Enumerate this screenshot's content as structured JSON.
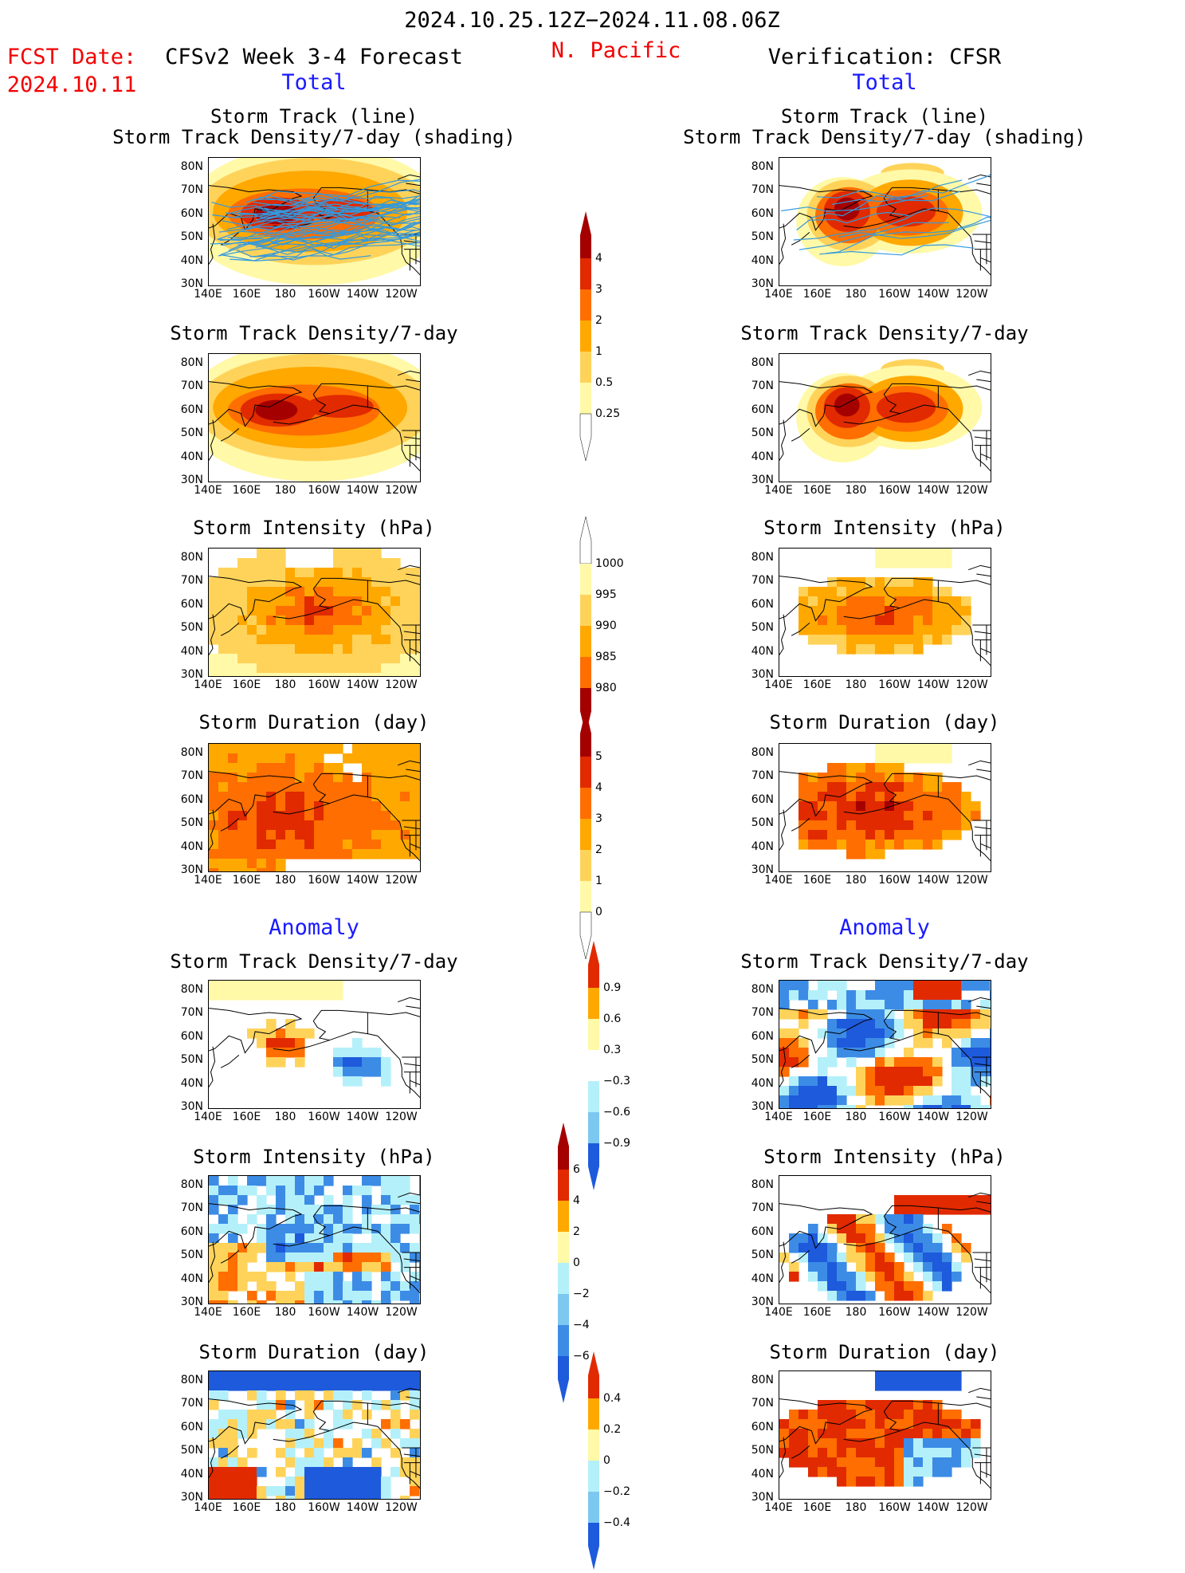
{
  "header": {
    "date_range": "2024.10.25.12Z−2024.11.08.06Z",
    "fcst_date_label": "FCST Date:",
    "fcst_date_value": "2024.10.11",
    "forecast_title": "CFSv2 Week 3-4 Forecast",
    "region": "N. Pacific",
    "verification_title": "Verification: CFSR"
  },
  "sections": {
    "total_left": "Total",
    "total_right": "Total",
    "anomaly_left": "Anomaly",
    "anomaly_right": "Anomaly"
  },
  "panel_titles": {
    "track_line": "Storm Track (line)",
    "track_shading": "Storm Track Density/7-day (shading)",
    "density": "Storm Track Density/7-day",
    "intensity": "Storm Intensity (hPa)",
    "duration": "Storm Duration (day)"
  },
  "axes": {
    "lat_ticks": [
      "80N",
      "70N",
      "60N",
      "50N",
      "40N",
      "30N"
    ],
    "lon_ticks": [
      "140E",
      "160E",
      "180",
      "160W",
      "140W",
      "120W"
    ]
  },
  "colorbars": {
    "density_total": [
      "4",
      "3",
      "2",
      "1",
      "0.5",
      "0.25"
    ],
    "intensity_total": [
      "1000",
      "995",
      "990",
      "985",
      "980"
    ],
    "duration_total": [
      "5",
      "4",
      "3",
      "2",
      "1",
      "0"
    ],
    "density_anom": [
      "0.9",
      "0.6",
      "0.3",
      "−0.3",
      "−0.6",
      "−0.9"
    ],
    "intensity_anom": [
      "6",
      "4",
      "2",
      "0",
      "−2",
      "−4",
      "−6"
    ],
    "duration_anom": [
      "0.4",
      "0.2",
      "0",
      "−0.2",
      "−0.4"
    ]
  },
  "colors": {
    "warm": [
      "#fff9a8",
      "#ffd35a",
      "#ffa800",
      "#ff6e00",
      "#e12a00",
      "#a50000"
    ],
    "cool": [
      "#b4f0fa",
      "#7dc8f0",
      "#3c8ce6",
      "#1e5adc"
    ],
    "track_line": "#3399dd",
    "title_red": "#f20000",
    "section_blue": "#1a1aff"
  }
}
